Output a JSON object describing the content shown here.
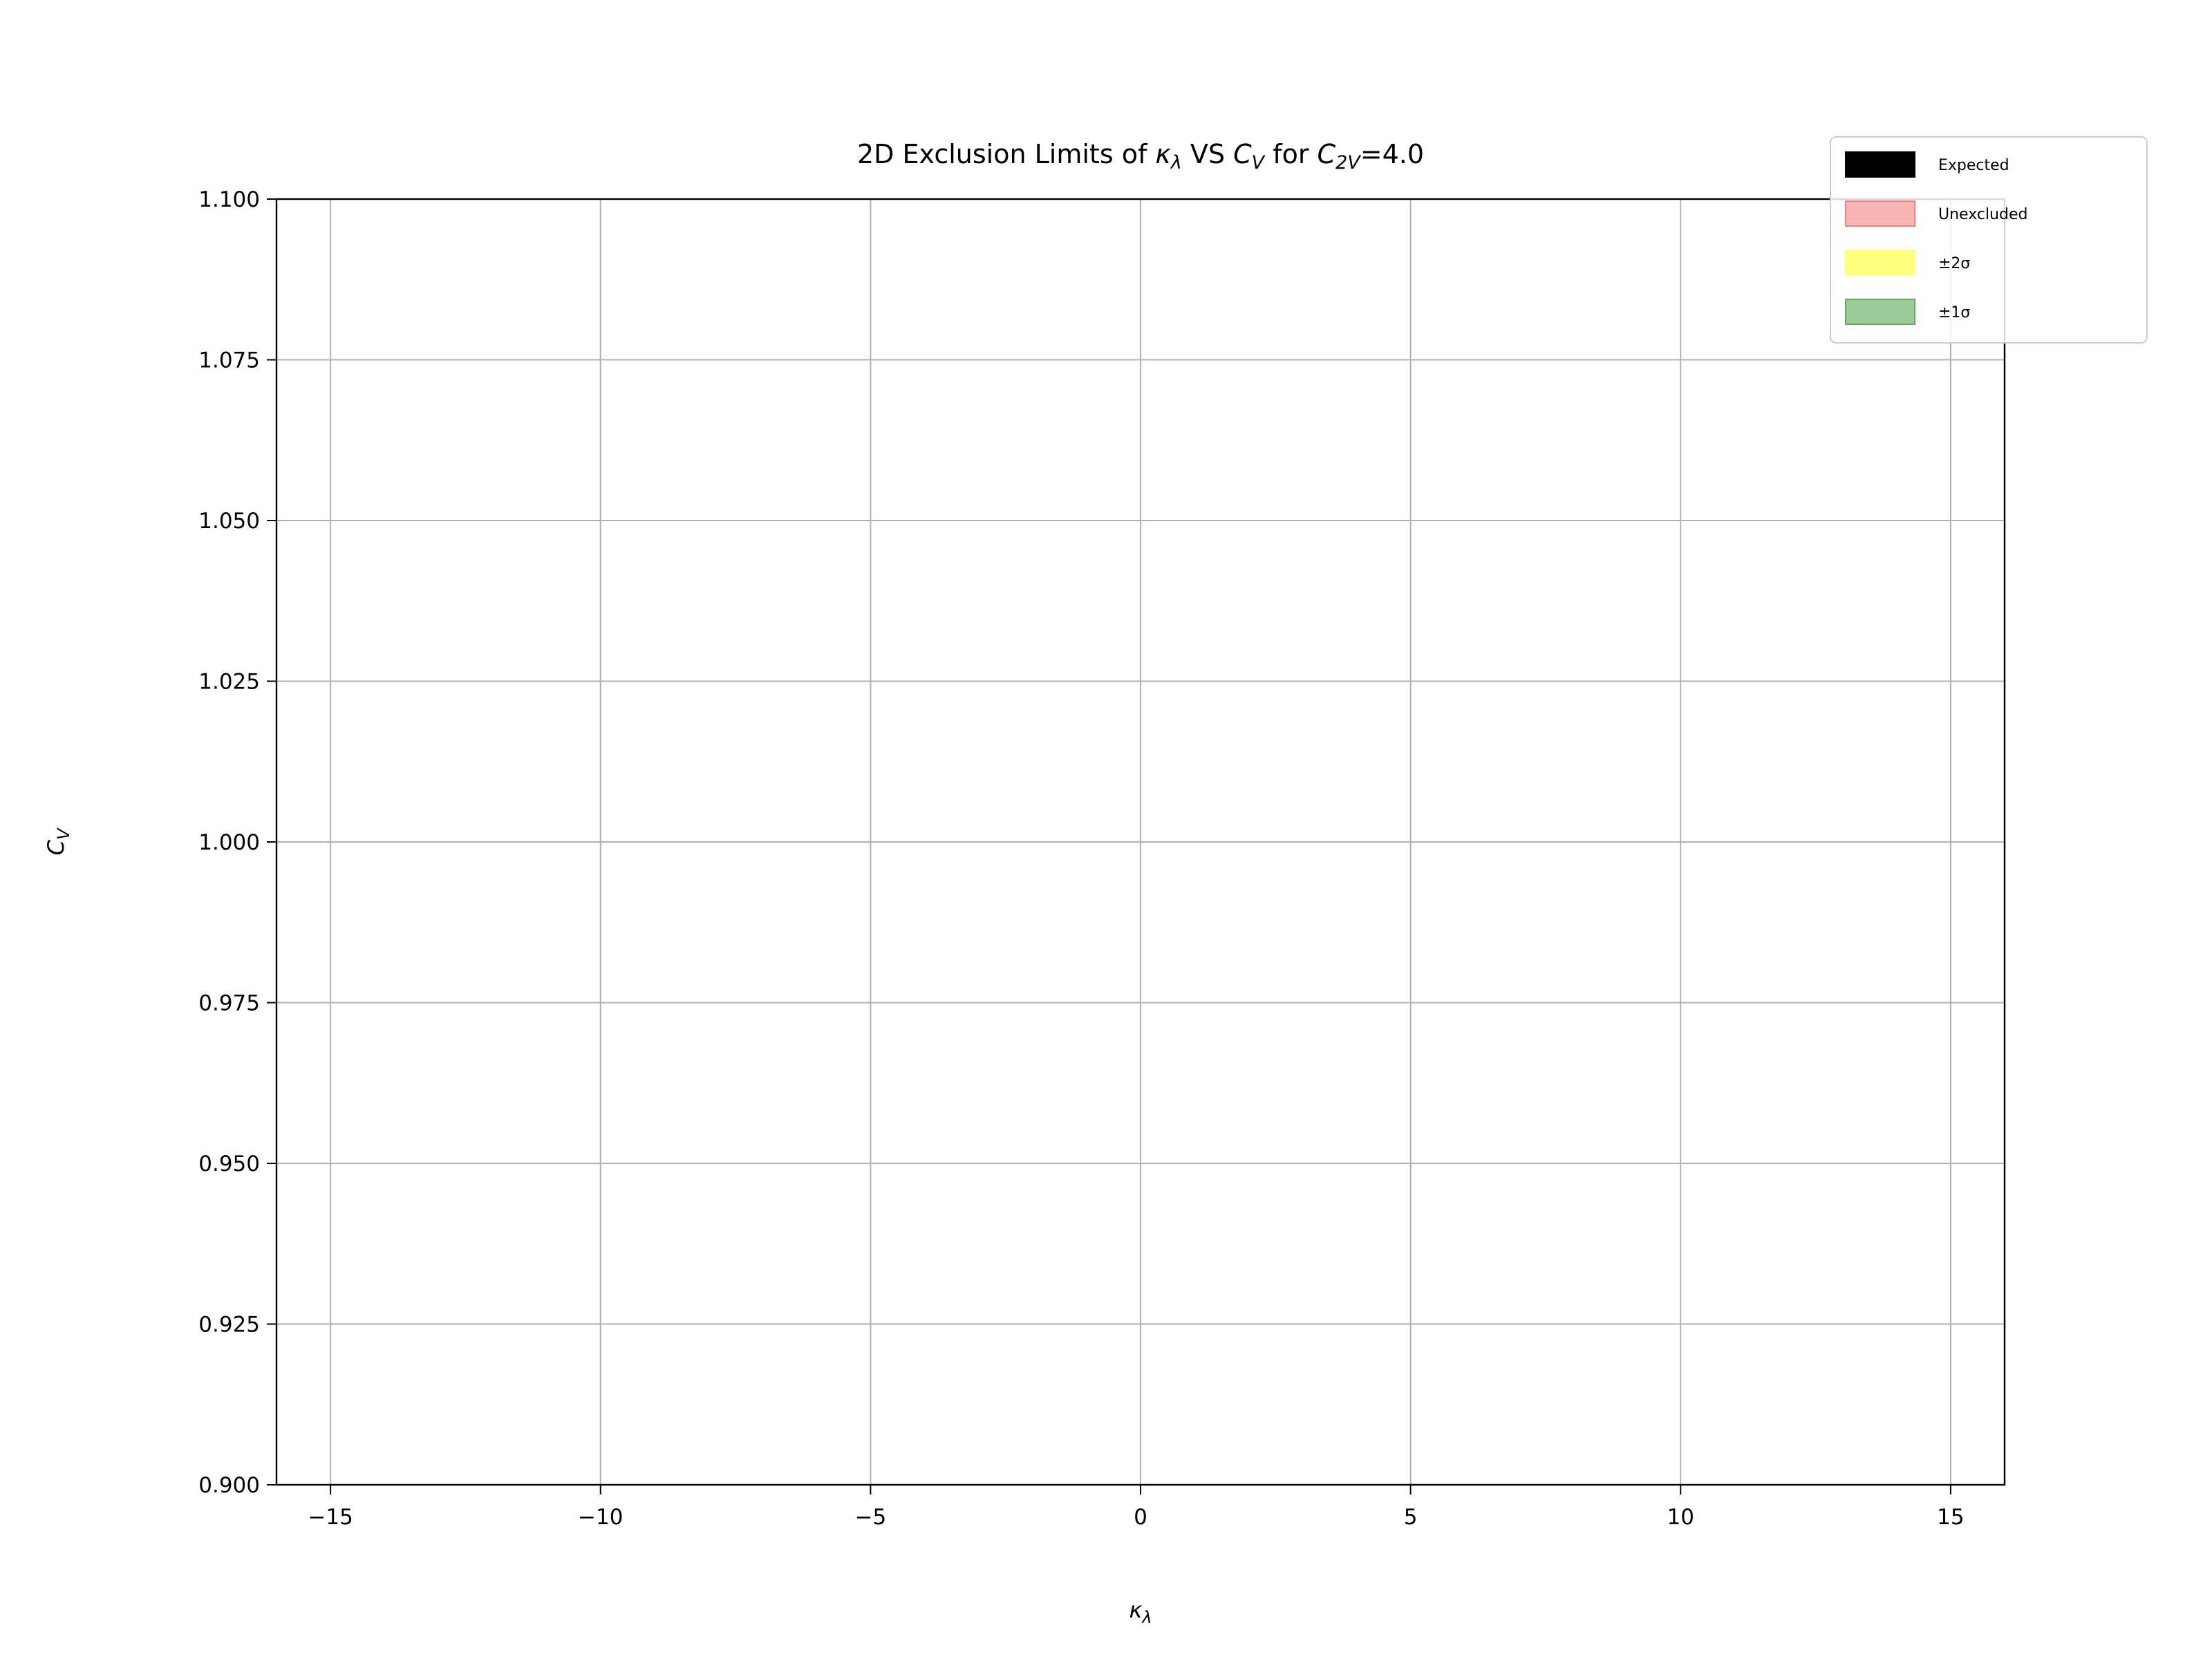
{
  "chart_data": {
    "type": "area",
    "title": {
      "prefix": "2D Exclusion Limits of ",
      "x_symbol": "κ",
      "x_sub": "λ",
      "mid": " VS ",
      "y_symbol": "C",
      "y_sub": "V",
      "for_text": " for ",
      "param_symbol": "C",
      "param_sub": "2V",
      "param_value": "=4.0"
    },
    "xlabel": {
      "symbol": "κ",
      "sub": "λ"
    },
    "ylabel": {
      "symbol": "C",
      "sub": "V"
    },
    "xlim": [
      -16,
      16
    ],
    "ylim": [
      0.9,
      1.1
    ],
    "x_ticks": [
      {
        "value": -15,
        "label": "−15"
      },
      {
        "value": -10,
        "label": "−10"
      },
      {
        "value": -5,
        "label": "−5"
      },
      {
        "value": 0,
        "label": "0"
      },
      {
        "value": 5,
        "label": "5"
      },
      {
        "value": 10,
        "label": "10"
      },
      {
        "value": 15,
        "label": "15"
      }
    ],
    "y_ticks": [
      {
        "value": 0.9,
        "label": "0.900"
      },
      {
        "value": 0.925,
        "label": "0.925"
      },
      {
        "value": 0.95,
        "label": "0.950"
      },
      {
        "value": 0.975,
        "label": "0.975"
      },
      {
        "value": 1.0,
        "label": "1.000"
      },
      {
        "value": 1.025,
        "label": "1.025"
      },
      {
        "value": 1.05,
        "label": "1.050"
      },
      {
        "value": 1.075,
        "label": "1.075"
      },
      {
        "value": 1.1,
        "label": "1.100"
      }
    ],
    "grid": true,
    "legend_position": "top-right",
    "series": [
      {
        "name": "Expected",
        "color": "#000000",
        "edge": "#000000",
        "values": []
      },
      {
        "name": "Unexcluded",
        "color": "#fbb4b4",
        "edge": "#f08080",
        "values": []
      },
      {
        "name": "±2σ",
        "color": "#ffff80",
        "edge": "#ffff80",
        "values": []
      },
      {
        "name": "±1σ",
        "color": "#99cc99",
        "edge": "#66aa66",
        "values": []
      }
    ]
  }
}
